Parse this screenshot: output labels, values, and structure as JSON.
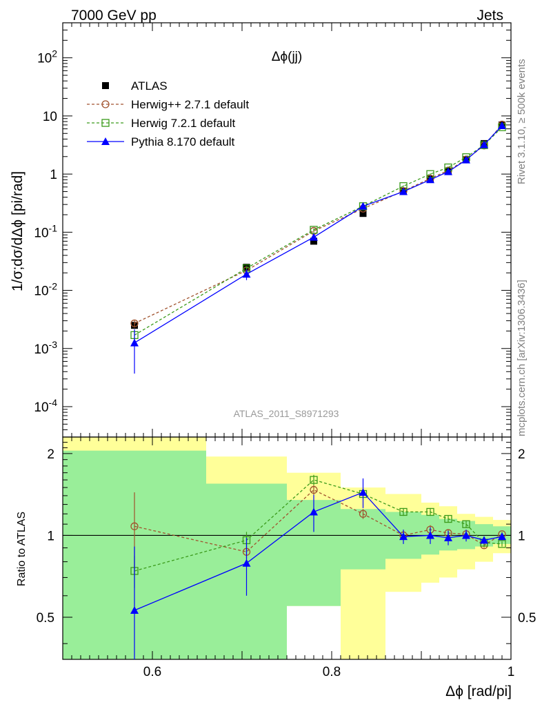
{
  "header": {
    "left": "7000 GeV pp",
    "right": "Jets"
  },
  "side_labels": {
    "rivet": "Rivet 3.1.10, ≥ 500k events",
    "mcplots": "mcplots.cern.ch [arXiv:1306.3436]"
  },
  "analysis_id": "ATLAS_2011_S8971293",
  "chart_data": [
    {
      "type": "line",
      "title": "Δϕ(jj)",
      "ylabel": "1/σ;dσ/dΔϕ [pi/rad]",
      "xlabel": "",
      "y_scale": "log",
      "xlim": [
        0.5,
        1.0
      ],
      "ylim": [
        3e-05,
        400
      ],
      "y_tick_labels": [
        "10^2",
        "10",
        "1",
        "10^-1",
        "10^-2",
        "10^-3",
        "10^-4"
      ],
      "legend_position": "top-left",
      "x": [
        0.58,
        0.705,
        0.78,
        0.835,
        0.88,
        0.91,
        0.93,
        0.95,
        0.97,
        0.99
      ],
      "series": [
        {
          "name": "ATLAS",
          "color": "#000000",
          "marker": "filled-square",
          "values": [
            0.0025,
            0.025,
            0.07,
            0.21,
            0.51,
            0.82,
            1.13,
            1.77,
            3.35,
            7.0
          ]
        },
        {
          "name": "Herwig++ 2.7.1 default",
          "color": "#a0522d",
          "marker": "open-circle",
          "dashed": true,
          "values": [
            0.0027,
            0.022,
            0.105,
            0.255,
            0.51,
            0.84,
            1.15,
            1.78,
            3.1,
            7.1
          ],
          "errors": [
            0.0004,
            0.002,
            0.006,
            0.01,
            0.02,
            0.03,
            0.04,
            0.05,
            0.08,
            0.15
          ]
        },
        {
          "name": "Herwig 7.2.1 default",
          "color": "#3a9a1a",
          "marker": "open-square",
          "dashed": true,
          "values": [
            0.0017,
            0.024,
            0.11,
            0.28,
            0.62,
            1.0,
            1.3,
            1.95,
            3.15,
            6.4
          ],
          "errors": [
            0.0003,
            0.002,
            0.006,
            0.01,
            0.02,
            0.03,
            0.04,
            0.05,
            0.08,
            0.15
          ]
        },
        {
          "name": "Pythia 8.170 default",
          "color": "#0000ff",
          "marker": "filled-triangle",
          "values": [
            0.00125,
            0.019,
            0.082,
            0.28,
            0.5,
            0.8,
            1.1,
            1.75,
            3.2,
            6.8
          ],
          "errors": [
            0.00088,
            0.004,
            0.007,
            0.015,
            0.03,
            0.04,
            0.05,
            0.07,
            0.1,
            0.2
          ]
        }
      ]
    },
    {
      "type": "line",
      "ylabel": "Ratio to ATLAS",
      "xlabel": "Δϕ [rad/pi]",
      "xlim": [
        0.5,
        1.0
      ],
      "ylim": [
        0.35,
        2.3
      ],
      "x_tick_labels": [
        "0.6",
        "0.8",
        "1"
      ],
      "y_tick_labels": [
        "0.5",
        "1",
        "2"
      ],
      "reference_line": 1,
      "bins": [
        0.5,
        0.66,
        0.75,
        0.81,
        0.86,
        0.9,
        0.92,
        0.94,
        0.96,
        0.98,
        1.0
      ],
      "bands": [
        {
          "name": "yellow",
          "color": "#ffff99",
          "low": [
            0.35,
            0.55,
            0.55,
            0.35,
            0.62,
            0.67,
            0.7,
            0.75,
            0.8,
            0.86
          ],
          "high": [
            2.3,
            1.95,
            1.7,
            1.5,
            1.42,
            1.32,
            1.28,
            1.2,
            1.17,
            1.14
          ]
        },
        {
          "name": "green",
          "color": "#99ee99",
          "low": [
            0.35,
            0.35,
            0.55,
            0.75,
            0.82,
            0.85,
            0.88,
            0.89,
            0.91,
            0.93
          ],
          "high": [
            2.05,
            1.55,
            1.35,
            1.25,
            1.22,
            1.19,
            1.15,
            1.13,
            1.1,
            1.08
          ]
        }
      ],
      "x": [
        0.58,
        0.705,
        0.78,
        0.835,
        0.88,
        0.91,
        0.93,
        0.95,
        0.97,
        0.99
      ],
      "series": [
        {
          "name": "Herwig++ 2.7.1 default",
          "color": "#a0522d",
          "marker": "open-circle",
          "dashed": true,
          "values": [
            1.08,
            0.87,
            1.47,
            1.2,
            1.0,
            1.05,
            1.02,
            1.01,
            0.92,
            1.01
          ],
          "errors": [
            0.36,
            0.05,
            0.06,
            0.05,
            0.04,
            0.04,
            0.03,
            0.03,
            0.02,
            0.02
          ]
        },
        {
          "name": "Herwig 7.2.1 default",
          "color": "#3a9a1a",
          "marker": "open-square",
          "dashed": true,
          "values": [
            0.74,
            0.96,
            1.6,
            1.42,
            1.22,
            1.22,
            1.15,
            1.1,
            0.94,
            0.93
          ],
          "errors": [
            0.1,
            0.07,
            0.07,
            0.05,
            0.04,
            0.04,
            0.03,
            0.03,
            0.02,
            0.02
          ]
        },
        {
          "name": "Pythia 8.170 default",
          "color": "#0000ff",
          "marker": "filled-triangle",
          "values": [
            0.53,
            0.79,
            1.22,
            1.44,
            0.99,
            1.0,
            0.98,
            1.0,
            0.96,
            0.99
          ],
          "errors": [
            0.38,
            0.19,
            0.19,
            0.18,
            0.06,
            0.07,
            0.06,
            0.05,
            0.03,
            0.03
          ]
        }
      ]
    }
  ]
}
